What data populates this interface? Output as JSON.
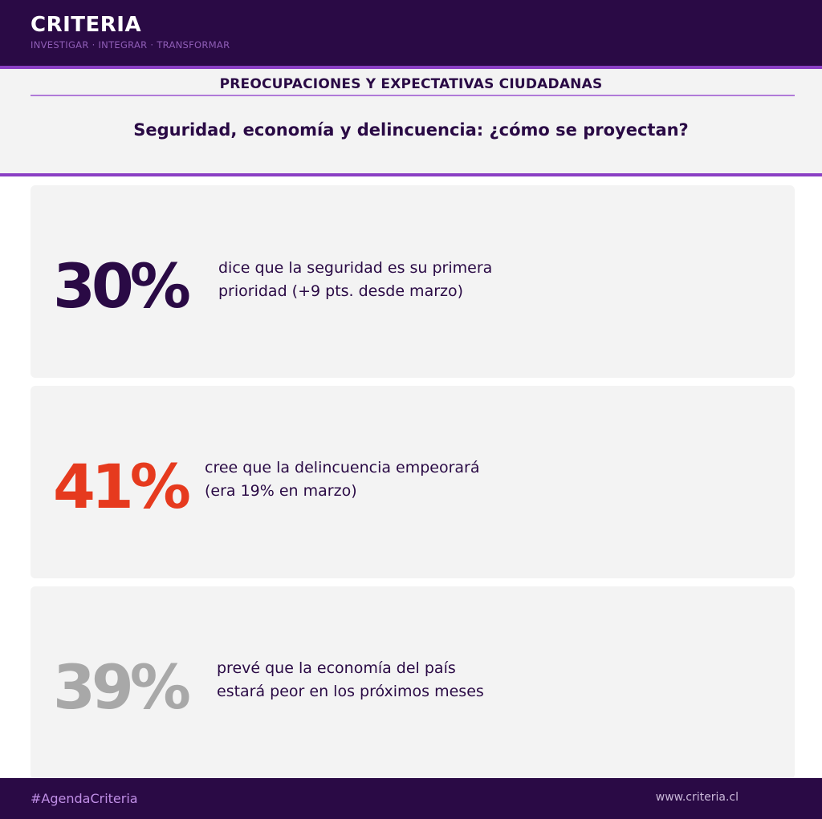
{
  "brand": {
    "name": "CRITERIA",
    "tagline": "INVESTIGAR · INTEGRAR · TRANSFORMAR"
  },
  "header": {
    "section_title": "PREOCUPACIONES Y EXPECTATIVAS CIUDADANAS",
    "subtitle": "Seguridad, economía y delincuencia: ¿cómo se proyectan?"
  },
  "stats": [
    {
      "value": "30%",
      "line1": "dice que la seguridad es su primera",
      "line2": "prioridad (+9 pts. desde marzo)",
      "color": "#2a0a45"
    },
    {
      "value": "41%",
      "line1": "cree que la delincuencia empeorará",
      "line2": "(era 19% en marzo)",
      "color": "#e63a1e"
    },
    {
      "value": "39%",
      "line1": "prevé que la economía del país",
      "line2": "estará peor en los próximos meses",
      "color": "#a8a8a8"
    }
  ],
  "footer": {
    "hashtag": "#AgendaCriteria",
    "website": "www.criteria.cl"
  }
}
